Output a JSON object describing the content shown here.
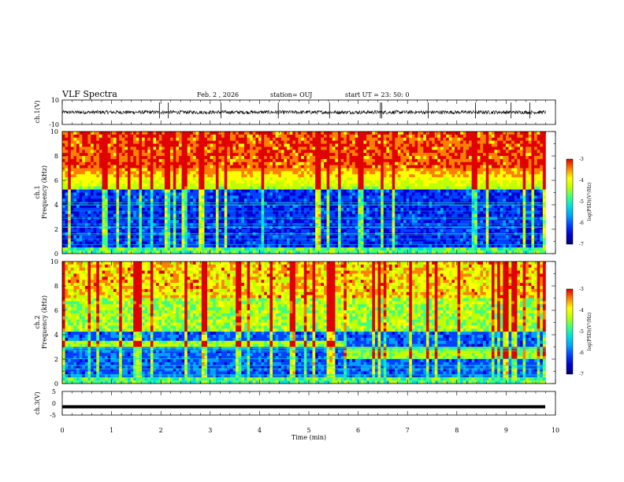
{
  "header": {
    "title": "VLF Spectra",
    "date": "Feb. 2 , 2026",
    "station": "station= OUJ",
    "start": "start  UT =  23: 50: 0"
  },
  "chart_data": [
    {
      "type": "line",
      "name": "ch1-waveform",
      "ylabel": "ch.1(V)",
      "ylim": [
        -10,
        10
      ],
      "yticks": [
        "10",
        "-10"
      ],
      "xlim": [
        0,
        10
      ],
      "baseline": 0,
      "amplitude_typical": 1.5,
      "spike_times_min": [
        1.97,
        2.15,
        3.22,
        4.38,
        5.42,
        6.45,
        6.48,
        7.42,
        8.38,
        9.1,
        9.48
      ]
    },
    {
      "type": "heatmap",
      "name": "ch1-spectrogram",
      "ylabel_top": "ch.1",
      "ylabel": "Frequency  (kHz)",
      "ylim": [
        0,
        10
      ],
      "yticks": [
        "0",
        "2",
        "4",
        "6",
        "8",
        "10"
      ],
      "xlim": [
        0,
        10
      ],
      "data_end_min": 9.8,
      "colorbar": {
        "label": "log(PSD)(V²/Hz)",
        "ticks": [
          "-3",
          "-4",
          "-5",
          "-6",
          "-7"
        ],
        "range": [
          -7,
          -3
        ]
      },
      "noise_floor_khz": 5.0,
      "vertical_streaks": true
    },
    {
      "type": "heatmap",
      "name": "ch2-spectrogram",
      "ylabel_top": "ch.2",
      "ylabel": "Frequency  (kHz)",
      "ylim": [
        0,
        10
      ],
      "yticks": [
        "0",
        "2",
        "4",
        "6",
        "8",
        "10"
      ],
      "xlim": [
        0,
        10
      ],
      "data_end_min": 9.8,
      "colorbar": {
        "label": "log(PSD)(V²/Hz)",
        "ticks": [
          "-3",
          "-4",
          "-5",
          "-6",
          "-7"
        ],
        "range": [
          -7,
          -3
        ]
      },
      "band_khz_before_6min": [
        2.9,
        3.6
      ],
      "band_khz_after_6min": [
        2.1,
        3.0
      ],
      "vertical_streaks": true
    },
    {
      "type": "line",
      "name": "ch3-waveform",
      "ylabel": "ch.3(V)",
      "ylim": [
        -5,
        5
      ],
      "yticks": [
        "5",
        "0",
        "-5"
      ],
      "xlim": [
        0,
        10
      ],
      "level": -1.5
    }
  ],
  "xaxis": {
    "label": "Time  (min)",
    "ticks": [
      "0",
      "1",
      "2",
      "3",
      "4",
      "5",
      "6",
      "7",
      "8",
      "9",
      "10"
    ]
  },
  "colors": {
    "colormap": [
      "#000070",
      "#0000d0",
      "#0040ff",
      "#00a0ff",
      "#00e0e0",
      "#40ff80",
      "#c0ff00",
      "#ffff00",
      "#ff8000",
      "#e00000"
    ]
  }
}
